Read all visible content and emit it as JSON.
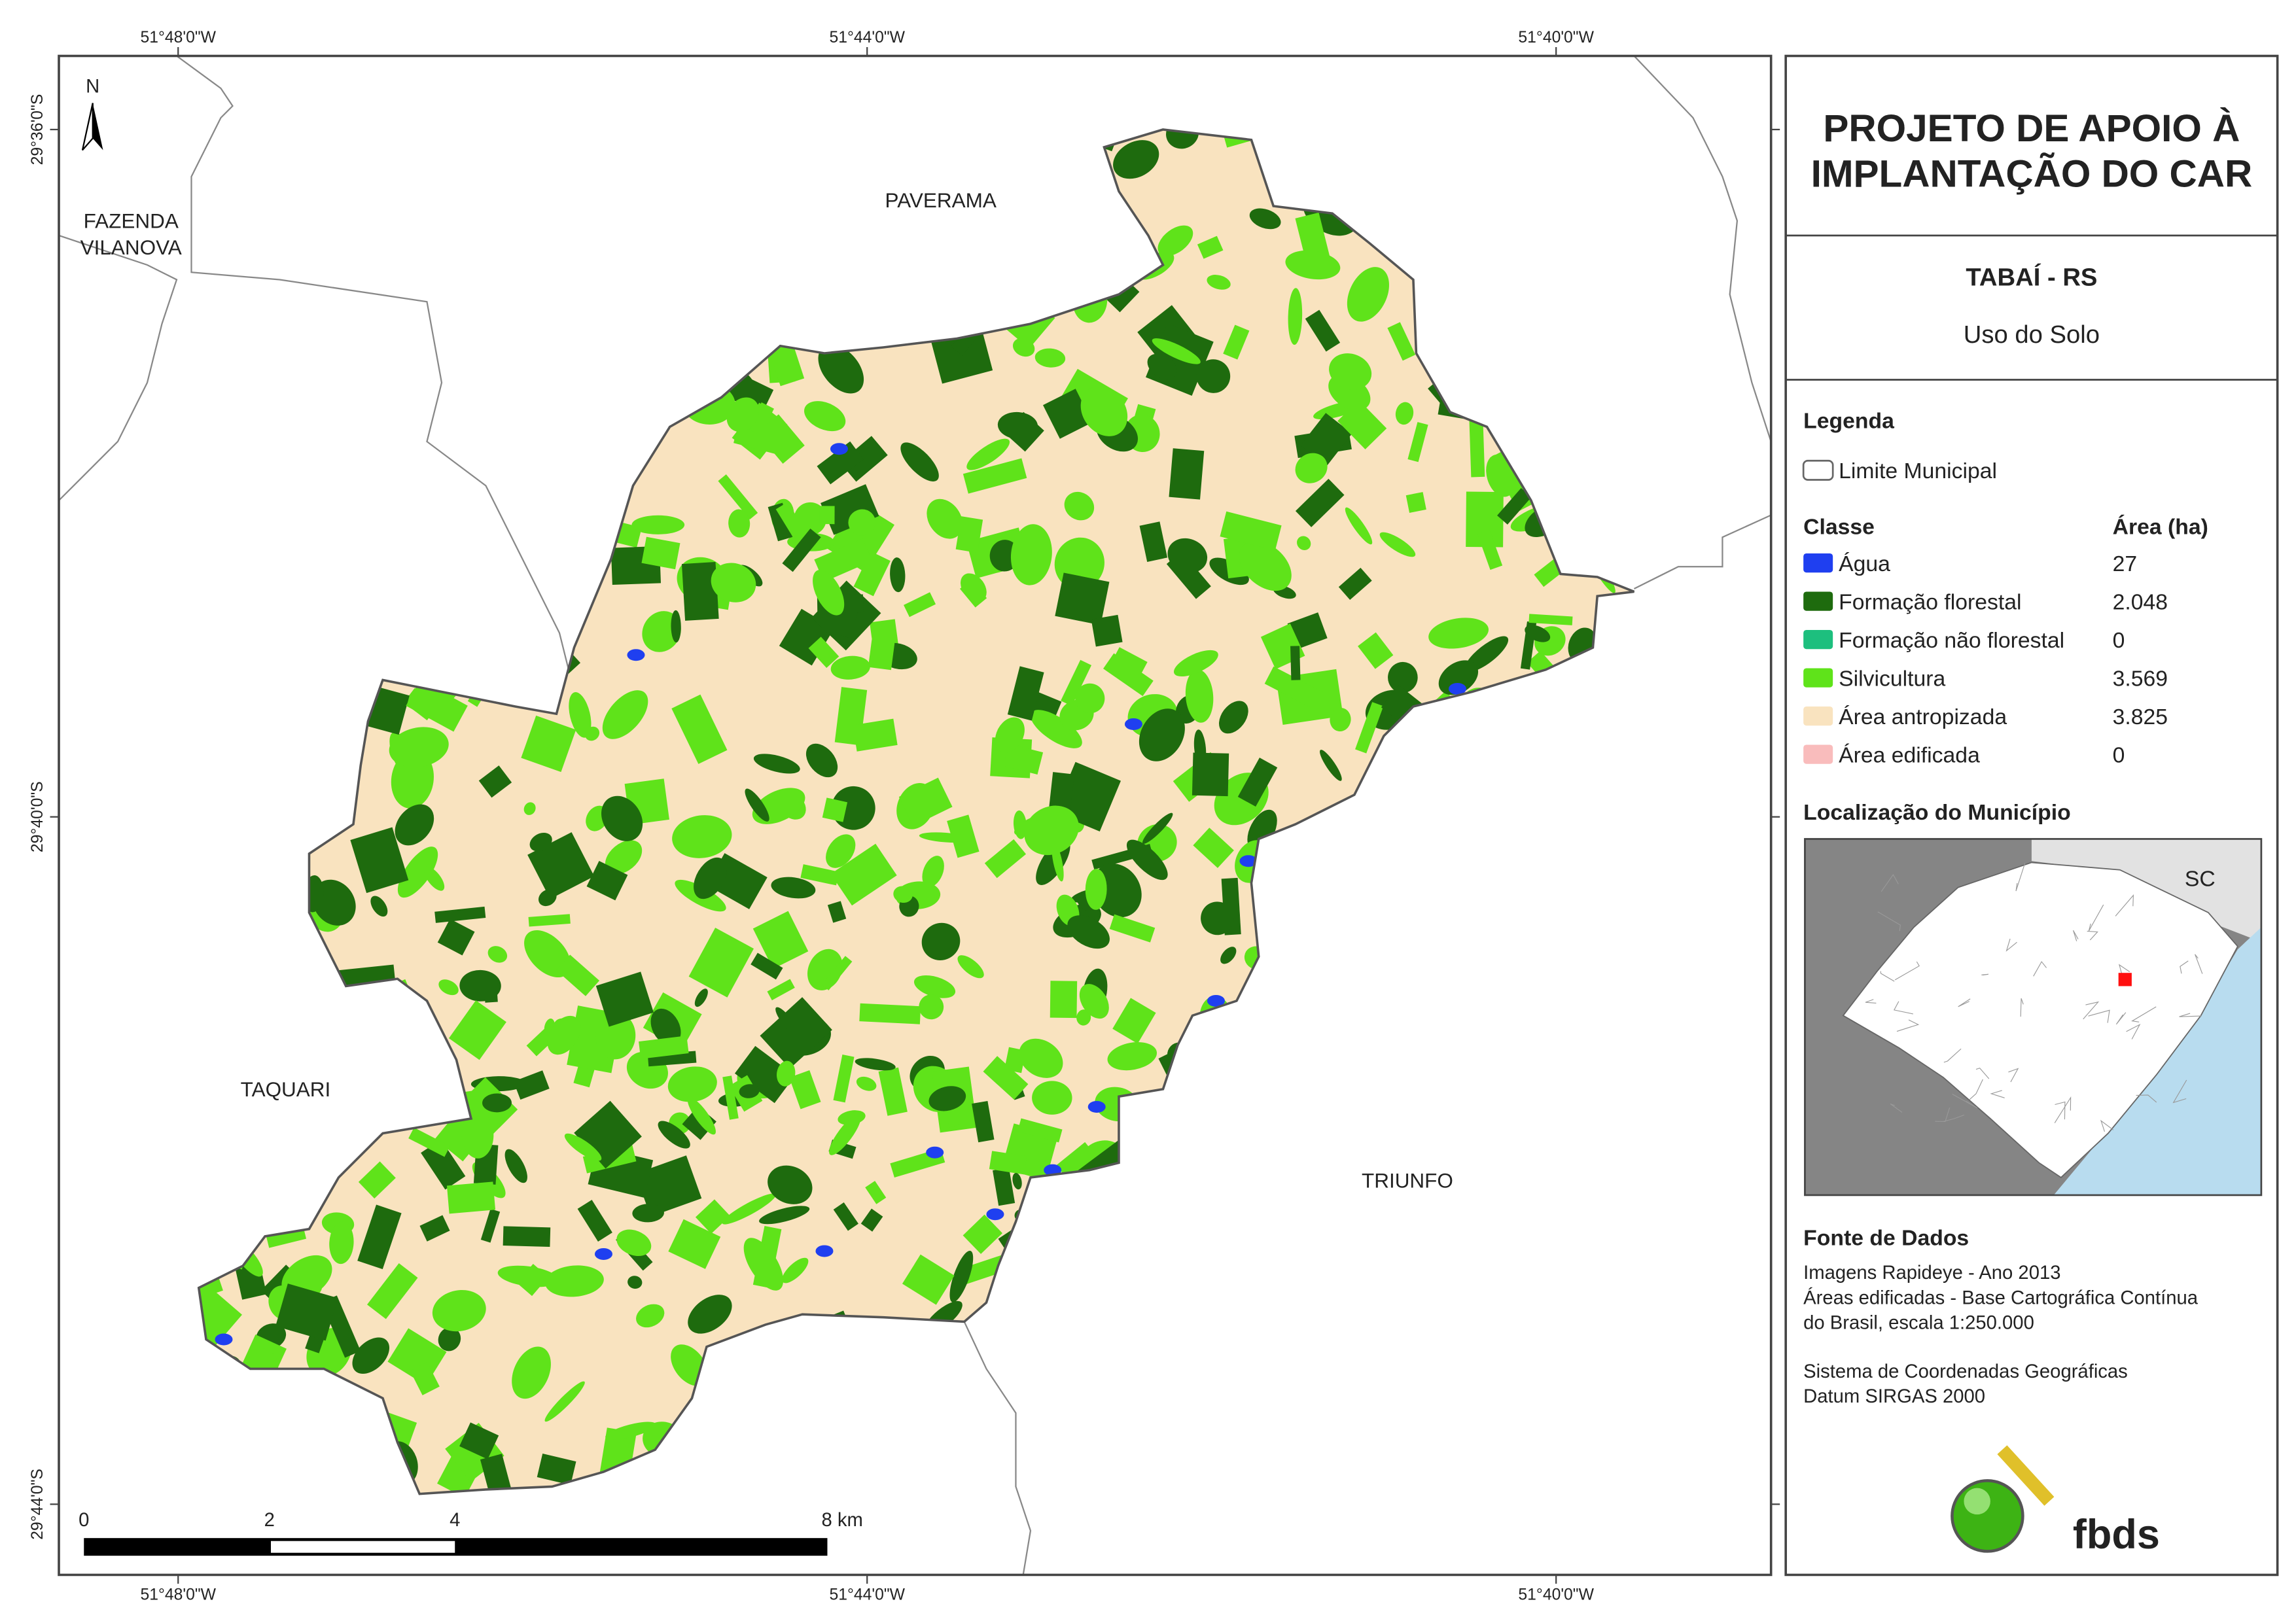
{
  "header": {
    "title_lines": [
      "PROJETO DE APOIO À",
      "IMPLANTAÇÃO DO CAR"
    ],
    "municipality": "TABAÍ - RS",
    "subtitle": "Uso do Solo"
  },
  "legend": {
    "title": "Legenda",
    "boundary": "Limite Municipal",
    "class_header": "Classe",
    "area_header": "Área (ha)",
    "classes": [
      {
        "name": "Água",
        "color": "#1f3ff0",
        "area": "27"
      },
      {
        "name": "Formação florestal",
        "color": "#1e6b0e",
        "area": "2.048"
      },
      {
        "name": "Formação não florestal",
        "color": "#1dbf7e",
        "area": "0"
      },
      {
        "name": "Silvicultura",
        "color": "#5fe31a",
        "area": "3.569"
      },
      {
        "name": "Área antropizada",
        "color": "#f9e3bf",
        "area": "3.825"
      },
      {
        "name": "Área edificada",
        "color": "#f9bcbc",
        "area": "0"
      }
    ]
  },
  "location": {
    "title": "Localização do Município",
    "state_label": "SC"
  },
  "source": {
    "title": "Fonte de Dados",
    "paragraphs": [
      [
        "Imagens Rapideye - Ano 2013",
        "Áreas edificadas - Base Cartográfica Contínua",
        "do Brasil, escala 1:250.000"
      ],
      [
        "Sistema de Coordenadas Geográficas",
        "Datum SIRGAS 2000"
      ]
    ]
  },
  "map": {
    "north": "N",
    "places": [
      {
        "label_lines": [
          "FAZENDA",
          "VILANOVA"
        ]
      },
      {
        "label_lines": [
          "PAVERAMA"
        ]
      },
      {
        "label_lines": [
          "TAQUARI"
        ]
      },
      {
        "label_lines": [
          "TRIUNFO"
        ]
      }
    ],
    "lon_labels": [
      "51°48'0\"W",
      "51°44'0\"W",
      "51°40'0\"W"
    ],
    "lat_labels": [
      "29°36'0\"S",
      "29°40'0\"S",
      "29°44'0\"S"
    ],
    "scale_labels": [
      "0",
      "2",
      "4",
      "8 km"
    ]
  },
  "logo": "fbds"
}
